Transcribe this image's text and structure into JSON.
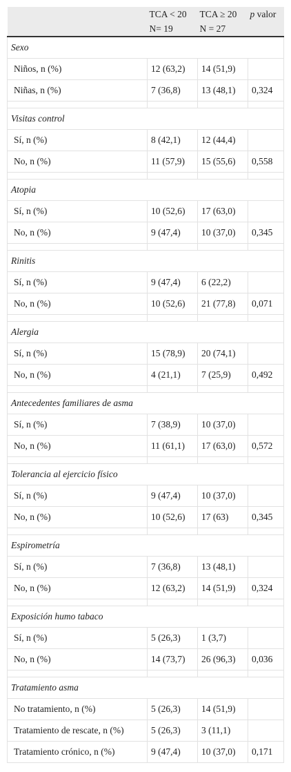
{
  "header": {
    "columns": [
      {
        "line1": "TCA < 20",
        "line2": "N= 19"
      },
      {
        "line1": "TCA ≥ 20",
        "line2": "N = 27"
      },
      {
        "symbol": "p",
        "label": "valor"
      }
    ]
  },
  "sections": [
    {
      "title": "Sexo",
      "rows": [
        [
          "Niños, n (%)",
          "12 (63,2)",
          "14 (51,9)"
        ],
        [
          "Niñas, n (%)",
          "7 (36,8)",
          "13 (48,1)",
          "0,324"
        ]
      ]
    },
    {
      "title": "Visitas control",
      "rows": [
        [
          "Sí, n (%)",
          "8 (42,1)",
          "12 (44,4)"
        ],
        [
          "No, n (%)",
          "11 (57,9)",
          "15 (55,6)",
          "0,558"
        ]
      ]
    },
    {
      "title": "Atopia",
      "rows": [
        [
          "Sí, n (%)",
          "10 (52,6)",
          "17 (63,0)"
        ],
        [
          "No, n (%)",
          "9 (47,4)",
          "10 (37,0)",
          "0,345"
        ]
      ]
    },
    {
      "title": "Rinitis",
      "rows": [
        [
          "Sí, n (%)",
          "9 (47,4)",
          "6 (22,2)"
        ],
        [
          "No, n (%)",
          "10 (52,6)",
          "21 (77,8)",
          "0,071"
        ]
      ]
    },
    {
      "title": "Alergia",
      "rows": [
        [
          "Sí, n (%)",
          "15 (78,9)",
          "20 (74,1)"
        ],
        [
          "No, n (%)",
          "4 (21,1)",
          "7 (25,9)",
          "0,492"
        ]
      ]
    },
    {
      "title": "Antecedentes familiares de asma",
      "rows": [
        [
          "Sí, n (%)",
          "7 (38,9)",
          "10 (37,0)"
        ],
        [
          "No, n (%)",
          "11 (61,1)",
          "17 (63,0)",
          "0,572"
        ]
      ]
    },
    {
      "title": "Tolerancia al ejercicio físico",
      "rows": [
        [
          "Sí, n (%)",
          "9 (47,4)",
          "10 (37,0)"
        ],
        [
          "No, n (%)",
          "10 (52,6)",
          "17 (63)",
          "0,345"
        ]
      ]
    },
    {
      "title": "Espirometría",
      "rows": [
        [
          "Sí, n (%)",
          "7 (36,8)",
          "13 (48,1)"
        ],
        [
          "No, n (%)",
          "12 (63,2)",
          "14 (51,9)",
          "0,324"
        ]
      ]
    },
    {
      "title": "Exposición humo tabaco",
      "rows": [
        [
          "Sí, n (%)",
          "5 (26,3)",
          "1 (3,7)"
        ],
        [
          "No, n (%)",
          "14 (73,7)",
          "26 (96,3)",
          "0,036"
        ]
      ]
    },
    {
      "title": "Tratamiento asma",
      "rows": [
        [
          "No tratamiento, n (%)",
          "5 (26,3)",
          "14 (51,9)"
        ],
        [
          "Tratamiento de rescate, n (%)",
          "5 (26,3)",
          "3 (11,1)"
        ],
        [
          "Tratamiento crónico, n (%)",
          "9 (47,4)",
          "10 (37,0)",
          "0,171"
        ]
      ]
    }
  ]
}
